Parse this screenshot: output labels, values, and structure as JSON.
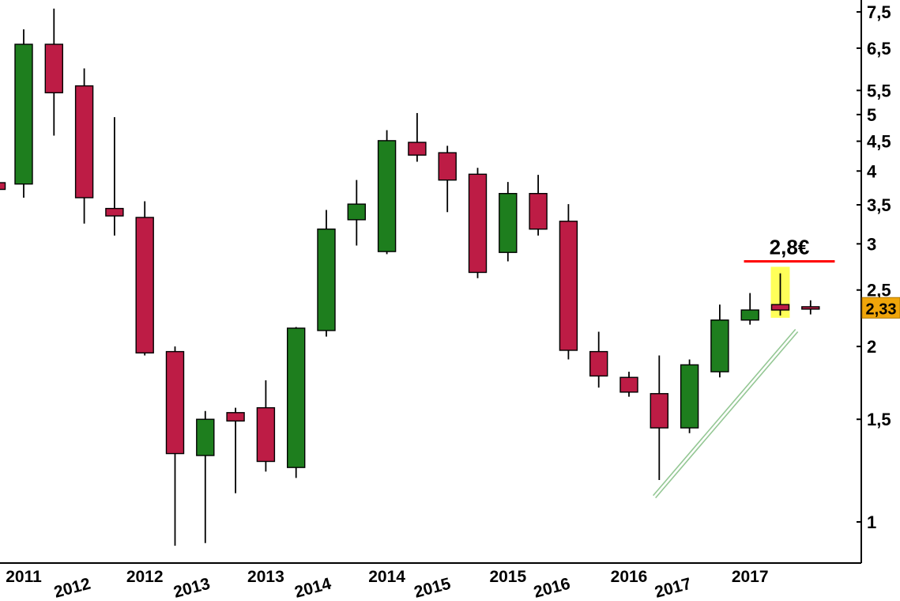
{
  "page": {
    "background": "#ffffff"
  },
  "chart_data": {
    "type": "candlestick",
    "title": "",
    "y_scale": "log",
    "series_period": "quarterly",
    "y_axis": {
      "side": "right",
      "labels": [
        {
          "text": "7,5",
          "value": 7.5
        },
        {
          "text": "6,5",
          "value": 6.5
        },
        {
          "text": "5,5",
          "value": 5.5
        },
        {
          "text": "5",
          "value": 5.0
        },
        {
          "text": "4,5",
          "value": 4.5
        },
        {
          "text": "4",
          "value": 4.0
        },
        {
          "text": "3,5",
          "value": 3.5
        },
        {
          "text": "3",
          "value": 3.0
        },
        {
          "text": "2,5",
          "value": 2.5
        },
        {
          "text": "2",
          "value": 2.0
        },
        {
          "text": "1,5",
          "value": 1.5
        },
        {
          "text": "1",
          "value": 1.0
        }
      ]
    },
    "x_axis": {
      "primary_labels": [
        {
          "text": "2011",
          "index": 0
        },
        {
          "text": "2012",
          "index": 4
        },
        {
          "text": "2013",
          "index": 8
        },
        {
          "text": "2014",
          "index": 12
        },
        {
          "text": "2015",
          "index": 16
        },
        {
          "text": "2016",
          "index": 20
        },
        {
          "text": "2017",
          "index": 24
        }
      ],
      "secondary_rotated_labels": [
        {
          "text": "2012",
          "index": 1.65
        },
        {
          "text": "2013",
          "index": 5.6
        },
        {
          "text": "2014",
          "index": 9.6
        },
        {
          "text": "2015",
          "index": 13.55
        },
        {
          "text": "2016",
          "index": 17.5
        },
        {
          "text": "2017",
          "index": 21.5
        }
      ]
    },
    "candles": [
      {
        "period": "2010-Q4",
        "index": -0.9,
        "o": 3.82,
        "h": 3.85,
        "l": 3.7,
        "c": 3.72,
        "partial": true
      },
      {
        "period": "2011-Q1",
        "index": 0,
        "o": 3.8,
        "h": 7.0,
        "l": 3.6,
        "c": 6.6
      },
      {
        "period": "2011-Q2",
        "index": 1,
        "o": 6.6,
        "h": 7.6,
        "l": 4.6,
        "c": 5.45
      },
      {
        "period": "2011-Q3",
        "index": 2,
        "o": 5.6,
        "h": 6.0,
        "l": 3.25,
        "c": 3.6
      },
      {
        "period": "2011-Q4",
        "index": 3,
        "o": 3.45,
        "h": 4.95,
        "l": 3.1,
        "c": 3.35
      },
      {
        "period": "2012-Q1",
        "index": 4,
        "o": 3.33,
        "h": 3.55,
        "l": 1.93,
        "c": 1.95
      },
      {
        "period": "2012-Q2",
        "index": 5,
        "o": 1.96,
        "h": 2.0,
        "l": 0.91,
        "c": 1.31
      },
      {
        "period": "2012-Q3",
        "index": 6,
        "o": 1.3,
        "h": 1.55,
        "l": 0.92,
        "c": 1.5
      },
      {
        "period": "2012-Q4",
        "index": 7,
        "o": 1.54,
        "h": 1.57,
        "l": 1.12,
        "c": 1.49
      },
      {
        "period": "2013-Q1",
        "index": 8,
        "o": 1.57,
        "h": 1.75,
        "l": 1.22,
        "c": 1.27
      },
      {
        "period": "2013-Q2",
        "index": 9,
        "o": 1.24,
        "h": 2.16,
        "l": 1.19,
        "c": 2.15
      },
      {
        "period": "2013-Q3",
        "index": 10,
        "o": 2.13,
        "h": 3.43,
        "l": 2.08,
        "c": 3.18
      },
      {
        "period": "2013-Q4",
        "index": 11,
        "o": 3.3,
        "h": 3.86,
        "l": 2.98,
        "c": 3.51
      },
      {
        "period": "2014-Q1",
        "index": 12,
        "o": 2.91,
        "h": 4.7,
        "l": 2.88,
        "c": 4.51
      },
      {
        "period": "2014-Q2",
        "index": 13,
        "o": 4.48,
        "h": 5.03,
        "l": 4.15,
        "c": 4.26
      },
      {
        "period": "2014-Q3",
        "index": 14,
        "o": 4.3,
        "h": 4.42,
        "l": 3.4,
        "c": 3.86
      },
      {
        "period": "2014-Q4",
        "index": 15,
        "o": 3.95,
        "h": 4.05,
        "l": 2.62,
        "c": 2.68
      },
      {
        "period": "2015-Q1",
        "index": 16,
        "o": 2.9,
        "h": 3.83,
        "l": 2.8,
        "c": 3.66
      },
      {
        "period": "2015-Q2",
        "index": 17,
        "o": 3.66,
        "h": 3.94,
        "l": 3.1,
        "c": 3.18
      },
      {
        "period": "2015-Q3",
        "index": 18,
        "o": 3.28,
        "h": 3.51,
        "l": 1.9,
        "c": 1.97
      },
      {
        "period": "2015-Q4",
        "index": 19,
        "o": 1.96,
        "h": 2.12,
        "l": 1.7,
        "c": 1.78
      },
      {
        "period": "2016-Q1",
        "index": 20,
        "o": 1.77,
        "h": 1.81,
        "l": 1.64,
        "c": 1.67
      },
      {
        "period": "2016-Q2",
        "index": 21,
        "o": 1.66,
        "h": 1.93,
        "l": 1.18,
        "c": 1.45
      },
      {
        "period": "2016-Q3",
        "index": 22,
        "o": 1.45,
        "h": 1.9,
        "l": 1.42,
        "c": 1.86
      },
      {
        "period": "2016-Q4",
        "index": 23,
        "o": 1.81,
        "h": 2.36,
        "l": 1.77,
        "c": 2.22
      },
      {
        "period": "2017-Q1",
        "index": 24,
        "o": 2.22,
        "h": 2.47,
        "l": 2.18,
        "c": 2.31
      },
      {
        "period": "2017-Q2",
        "index": 25,
        "o": 2.36,
        "h": 2.67,
        "l": 2.26,
        "c": 2.31
      },
      {
        "period": "2017-Q3",
        "index": 26,
        "o": 2.34,
        "h": 2.4,
        "l": 2.27,
        "c": 2.33
      }
    ],
    "annotations": {
      "resistance_line": {
        "label": "2,8€",
        "price": 2.8,
        "from_index": 23.8,
        "to_index": 26.8,
        "color": "#ff0000"
      },
      "highlight_box": {
        "index": 25,
        "price_top": 2.74,
        "price_bottom": 2.24,
        "color": "#ffff00",
        "opacity": 0.65
      },
      "trend_line": {
        "from_index": 20.8,
        "from_price": 1.11,
        "to_index": 25.5,
        "to_price": 2.14,
        "style": "double",
        "color": "#94c794"
      },
      "last_price_tag": {
        "text": "2,33",
        "value": 2.33,
        "bg": "#f0a50a",
        "text_color": "#000000"
      }
    },
    "colors": {
      "bullish": "#1e7e1e",
      "bearish": "#bd1c45",
      "wick": "#000000",
      "body_border": "#000000",
      "axis": "#000000",
      "label": "#000000"
    },
    "ylim": [
      0.85,
      7.8
    ],
    "grid": false,
    "legend": false
  }
}
